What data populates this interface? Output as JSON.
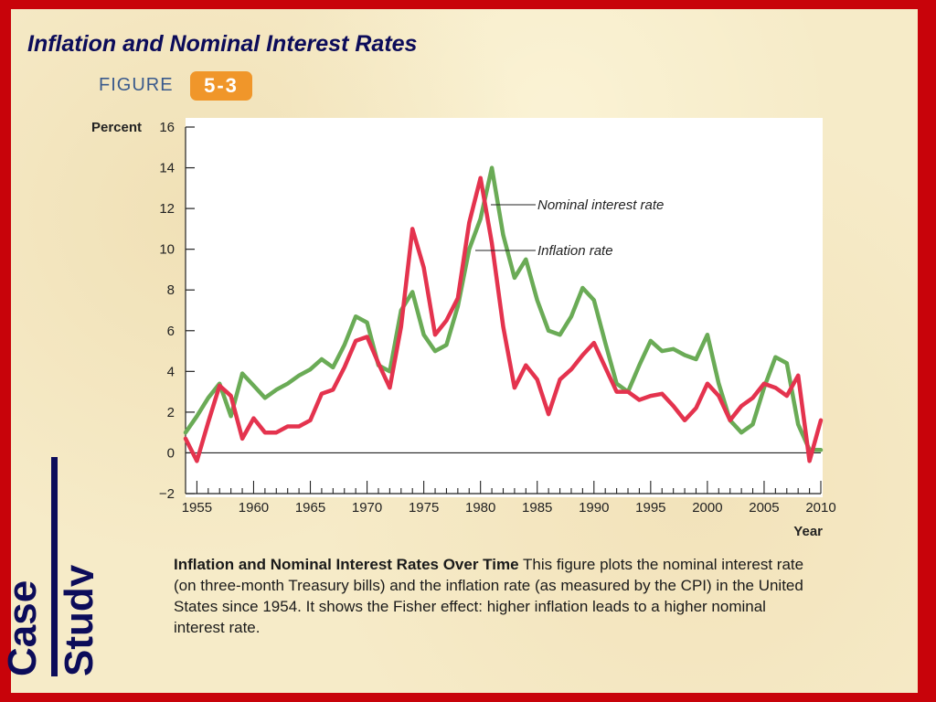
{
  "slide": {
    "title": "Inflation and Nominal Interest Rates",
    "figure_label": "FIGURE",
    "figure_number": "5-3",
    "side_label_1": "Case",
    "side_label_2": "Study",
    "caption_title": "Inflation and Nominal Interest Rates Over Time",
    "caption_body": " This figure plots the nominal interest rate (on three-month Treasury bills) and the inflation rate (as measured by the CPI) in the United States since 1954. It shows the Fisher effect: higher inflation leads to a higher nominal interest rate.",
    "colors": {
      "frame": "#c8030a",
      "background": "#f6ebc8",
      "title": "#0c0c5a",
      "figure_badge": "#f0962a",
      "nominal_line": "#6aab56",
      "inflation_line": "#e4334e"
    }
  },
  "chart_data": {
    "type": "line",
    "title": "",
    "xlabel": "Year",
    "ylabel": "Percent",
    "xlim": [
      1954,
      2010
    ],
    "ylim": [
      -2,
      16
    ],
    "xticks": [
      1955,
      1960,
      1965,
      1970,
      1975,
      1980,
      1985,
      1990,
      1995,
      2000,
      2005,
      2010
    ],
    "yticks": [
      -2,
      0,
      2,
      4,
      6,
      8,
      10,
      12,
      14,
      16
    ],
    "grid": false,
    "legend": "inline labels, top-right of peak",
    "series": [
      {
        "name": "Nominal interest rate",
        "color": "#6aab56",
        "x": [
          1954,
          1955,
          1956,
          1957,
          1958,
          1959,
          1960,
          1961,
          1962,
          1963,
          1964,
          1965,
          1966,
          1967,
          1968,
          1969,
          1970,
          1971,
          1972,
          1973,
          1974,
          1975,
          1976,
          1977,
          1978,
          1979,
          1980,
          1981,
          1982,
          1983,
          1984,
          1985,
          1986,
          1987,
          1988,
          1989,
          1990,
          1991,
          1992,
          1993,
          1994,
          1995,
          1996,
          1997,
          1998,
          1999,
          2000,
          2001,
          2002,
          2003,
          2004,
          2005,
          2006,
          2007,
          2008,
          2009,
          2010
        ],
        "y": [
          1.0,
          1.8,
          2.7,
          3.4,
          1.8,
          3.9,
          3.3,
          2.7,
          3.1,
          3.4,
          3.8,
          4.1,
          4.6,
          4.2,
          5.3,
          6.7,
          6.4,
          4.3,
          4.0,
          7.0,
          7.9,
          5.8,
          5.0,
          5.3,
          7.2,
          10.0,
          11.5,
          14.0,
          10.7,
          8.6,
          9.5,
          7.5,
          6.0,
          5.8,
          6.7,
          8.1,
          7.5,
          5.4,
          3.4,
          3.0,
          4.3,
          5.5,
          5.0,
          5.1,
          4.8,
          4.6,
          5.8,
          3.4,
          1.6,
          1.0,
          1.4,
          3.2,
          4.7,
          4.4,
          1.4,
          0.15,
          0.14
        ]
      },
      {
        "name": "Inflation rate",
        "color": "#e4334e",
        "x": [
          1954,
          1955,
          1956,
          1957,
          1958,
          1959,
          1960,
          1961,
          1962,
          1963,
          1964,
          1965,
          1966,
          1967,
          1968,
          1969,
          1970,
          1971,
          1972,
          1973,
          1974,
          1975,
          1976,
          1977,
          1978,
          1979,
          1980,
          1981,
          1982,
          1983,
          1984,
          1985,
          1986,
          1987,
          1988,
          1989,
          1990,
          1991,
          1992,
          1993,
          1994,
          1995,
          1996,
          1997,
          1998,
          1999,
          2000,
          2001,
          2002,
          2003,
          2004,
          2005,
          2006,
          2007,
          2008,
          2009,
          2010
        ],
        "y": [
          0.7,
          -0.4,
          1.5,
          3.3,
          2.8,
          0.7,
          1.7,
          1.0,
          1.0,
          1.3,
          1.3,
          1.6,
          2.9,
          3.1,
          4.2,
          5.5,
          5.7,
          4.4,
          3.2,
          6.2,
          11.0,
          9.1,
          5.8,
          6.5,
          7.6,
          11.3,
          13.5,
          10.3,
          6.2,
          3.2,
          4.3,
          3.6,
          1.9,
          3.6,
          4.1,
          4.8,
          5.4,
          4.2,
          3.0,
          3.0,
          2.6,
          2.8,
          2.9,
          2.3,
          1.6,
          2.2,
          3.4,
          2.8,
          1.6,
          2.3,
          2.7,
          3.4,
          3.2,
          2.8,
          3.8,
          -0.4,
          1.6
        ]
      }
    ]
  }
}
